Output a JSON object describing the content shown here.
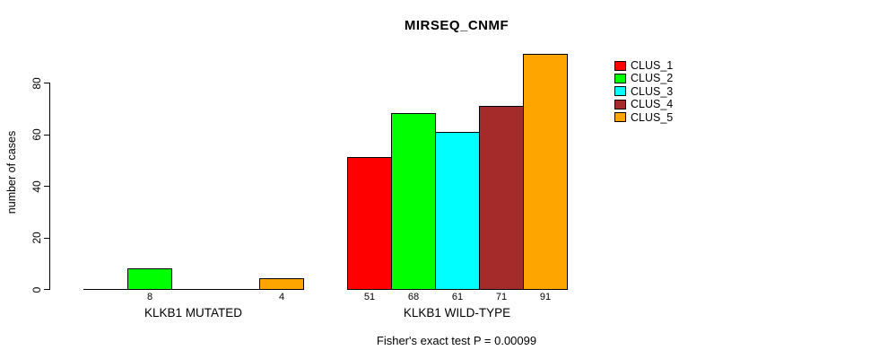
{
  "chart_data": {
    "type": "bar",
    "title": "MIRSEQ_CNMF",
    "subtitle": "Fisher's exact test P = 0.00099",
    "xlabel": "",
    "ylabel": "number of cases",
    "ylim": [
      0,
      93
    ],
    "yticks": [
      0,
      20,
      40,
      60,
      80
    ],
    "grid": false,
    "legend_position": "right",
    "bar_outline_color": "#000000",
    "background_color": "#ffffff",
    "categories": [
      "KLKB1 MUTATED",
      "KLKB1 WILD-TYPE"
    ],
    "series": [
      {
        "name": "CLUS_1",
        "color": "#FF0000",
        "values": [
          0,
          51
        ]
      },
      {
        "name": "CLUS_2",
        "color": "#00FF00",
        "values": [
          8,
          68
        ]
      },
      {
        "name": "CLUS_3",
        "color": "#00FFFF",
        "values": [
          0,
          61
        ]
      },
      {
        "name": "CLUS_4",
        "color": "#A52A2A",
        "values": [
          0,
          71
        ]
      },
      {
        "name": "CLUS_5",
        "color": "#FFA500",
        "values": [
          4,
          91
        ]
      }
    ],
    "value_labels": {
      "shown": true,
      "nonzero_only": true,
      "visible_values": [
        [
          "8",
          "4"
        ],
        [
          "51",
          "68",
          "61",
          "71",
          "91"
        ]
      ]
    }
  }
}
